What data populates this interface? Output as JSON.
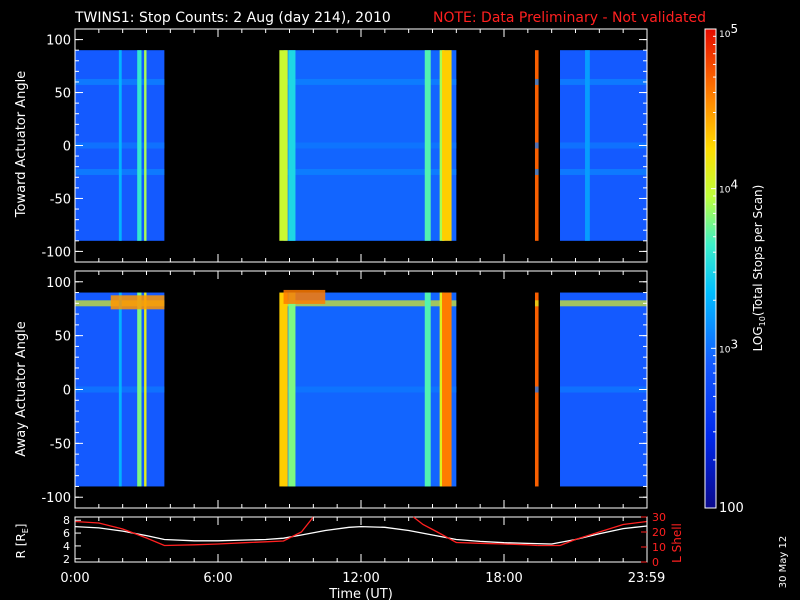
{
  "header": {
    "title": "TWINS1: Stop Counts:  2 Aug (day 214), 2010",
    "note": "NOTE: Data Preliminary - Not validated"
  },
  "footer": {
    "date_stamp": "30 May 12"
  },
  "colors": {
    "background": "#000000",
    "note": "#ff2020",
    "r_line": "#ffffff",
    "l_line": "#ff2020"
  },
  "chart_data": [
    {
      "type": "heatmap",
      "ylabel": "Toward Actuator Angle",
      "ylim": [
        -110,
        110
      ],
      "yticks": [
        100,
        50,
        0,
        -50,
        -100
      ],
      "xlim": [
        0,
        24
      ],
      "data_y_range": [
        -90,
        90
      ],
      "segments": [
        {
          "t0": 0.0,
          "t1": 3.75,
          "level": 2.9
        },
        {
          "t0": 8.75,
          "t1": 16.0,
          "level": 2.95
        },
        {
          "t0": 19.3,
          "t1": 19.45,
          "level": 4.7
        },
        {
          "t0": 20.35,
          "t1": 24.0,
          "level": 2.9
        }
      ],
      "streaks": [
        {
          "t": 1.9,
          "w": 0.12,
          "level": 3.3
        },
        {
          "t": 2.7,
          "w": 0.18,
          "level": 3.6
        },
        {
          "t": 2.95,
          "w": 0.1,
          "level": 3.9
        },
        {
          "t": 8.75,
          "w": 0.35,
          "level": 4.0
        },
        {
          "t": 9.1,
          "w": 0.3,
          "level": 3.5
        },
        {
          "t": 14.8,
          "w": 0.25,
          "level": 3.7
        },
        {
          "t": 15.4,
          "w": 0.2,
          "level": 3.9
        },
        {
          "t": 15.6,
          "w": 0.4,
          "level": 4.3
        },
        {
          "t": 21.5,
          "w": 0.2,
          "level": 3.2
        }
      ],
      "bands": [
        {
          "angle": 60,
          "level": 3.1
        },
        {
          "angle": -25,
          "level": 3.1
        },
        {
          "angle": 0,
          "level": 3.05
        }
      ]
    },
    {
      "type": "heatmap",
      "ylabel": "Away Actuator Angle",
      "ylim": [
        -110,
        110
      ],
      "yticks": [
        100,
        50,
        0,
        -50,
        -100
      ],
      "xlim": [
        0,
        24
      ],
      "data_y_range": [
        -90,
        90
      ],
      "segments": [
        {
          "t0": 0.0,
          "t1": 3.75,
          "level": 2.9
        },
        {
          "t0": 8.75,
          "t1": 16.0,
          "level": 2.95
        },
        {
          "t0": 19.3,
          "t1": 19.45,
          "level": 4.7
        },
        {
          "t0": 20.35,
          "t1": 24.0,
          "level": 2.9
        }
      ],
      "streaks": [
        {
          "t": 1.9,
          "w": 0.12,
          "level": 3.3
        },
        {
          "t": 2.7,
          "w": 0.18,
          "level": 3.8
        },
        {
          "t": 2.95,
          "w": 0.1,
          "level": 4.1
        },
        {
          "t": 8.75,
          "w": 0.35,
          "level": 4.3
        },
        {
          "t": 9.1,
          "w": 0.3,
          "level": 3.8
        },
        {
          "t": 14.8,
          "w": 0.25,
          "level": 3.7
        },
        {
          "t": 15.4,
          "w": 0.2,
          "level": 4.1
        },
        {
          "t": 15.6,
          "w": 0.4,
          "level": 4.6
        }
      ],
      "bands": [
        {
          "angle": 80,
          "level": 4.1
        },
        {
          "angle": 0,
          "level": 3.05
        }
      ],
      "hotspots": [
        {
          "t0": 1.5,
          "t1": 3.75,
          "angle": 80,
          "level": 4.5
        },
        {
          "t0": 8.75,
          "t1": 10.5,
          "angle": 85,
          "level": 4.6
        }
      ]
    },
    {
      "type": "line",
      "xlabel": "Time (UT)",
      "xticks": [
        "0:00",
        "6:00",
        "12:00",
        "18:00",
        "23:59"
      ],
      "xtick_hours": [
        0,
        6,
        12,
        18,
        23.98
      ],
      "ylabel_left": "R [R",
      "ylabel_left_sub": "E",
      "ylabel_left_end": "]",
      "ylim_left": [
        1.5,
        8.5
      ],
      "yticks_left": [
        2,
        4,
        6,
        8
      ],
      "ylabel_right": "L Shell",
      "ylim_right": [
        0,
        30
      ],
      "yticks_right": [
        0,
        10,
        20,
        30
      ],
      "series": [
        {
          "axis": "left",
          "x": [
            0,
            1,
            2,
            3,
            3.75,
            5,
            6,
            7,
            8,
            8.75,
            9.5,
            10.5,
            11.5,
            12,
            13,
            14,
            15,
            16,
            17,
            18,
            19,
            20,
            21,
            22,
            23,
            24
          ],
          "y": [
            7.0,
            6.8,
            6.3,
            5.6,
            5.0,
            4.8,
            4.8,
            4.9,
            5.0,
            5.2,
            5.7,
            6.4,
            6.9,
            7.0,
            6.9,
            6.4,
            5.7,
            5.0,
            4.7,
            4.5,
            4.4,
            4.3,
            5.0,
            5.9,
            6.7,
            7.1
          ]
        },
        {
          "axis": "right",
          "x": [
            0,
            1,
            2,
            3,
            3.75,
            5,
            6,
            7,
            8,
            8.75,
            9.5,
            10.0
          ],
          "y": [
            27,
            26,
            22,
            16,
            11,
            11.5,
            12,
            12.8,
            13.5,
            14,
            20,
            30
          ]
        },
        {
          "axis": "right",
          "x": [
            14.2,
            14.6,
            15.2,
            16.0,
            17,
            18,
            19,
            19.4
          ],
          "y": [
            30,
            25,
            20,
            13,
            12.5,
            12,
            11.5,
            11
          ]
        },
        {
          "axis": "right",
          "x": [
            19.4,
            20.35,
            21,
            22,
            23,
            24
          ],
          "y": [
            11,
            11,
            15,
            20,
            25,
            27
          ]
        }
      ]
    }
  ],
  "colorbar": {
    "label_main": "LOG",
    "label_sub": "10",
    "label_rest": "(Total Stops per Scan)",
    "ticks": [
      {
        "log": 5,
        "base": "10",
        "exp": "5"
      },
      {
        "log": 4,
        "base": "10",
        "exp": "4"
      },
      {
        "log": 3,
        "base": "10",
        "exp": "3"
      },
      {
        "log": 2,
        "base": "100",
        "exp": ""
      }
    ],
    "range": [
      2,
      5
    ]
  }
}
